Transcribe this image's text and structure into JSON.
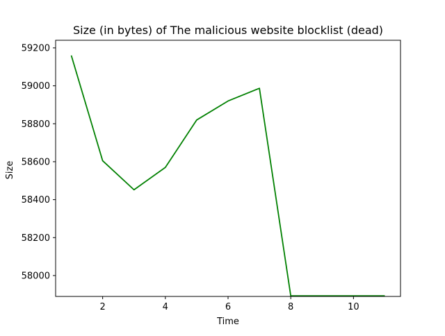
{
  "chart_data": {
    "type": "line",
    "title": "Size (in bytes) of The malicious website blocklist (dead)",
    "xlabel": "Time",
    "ylabel": "Size",
    "xlim": [
      0.5,
      11.5
    ],
    "ylim": [
      57890,
      59240
    ],
    "xticks": [
      2,
      4,
      6,
      8,
      10
    ],
    "yticks": [
      58000,
      58200,
      58400,
      58600,
      58800,
      59000,
      59200
    ],
    "grid": false,
    "series": [
      {
        "color": "#008000",
        "x": [
          1,
          2,
          3,
          4,
          5,
          6,
          7,
          8,
          9,
          10,
          11
        ],
        "y": [
          59160,
          58605,
          58452,
          58570,
          58820,
          58920,
          58987,
          57893,
          57893,
          57893,
          57893
        ]
      }
    ]
  }
}
